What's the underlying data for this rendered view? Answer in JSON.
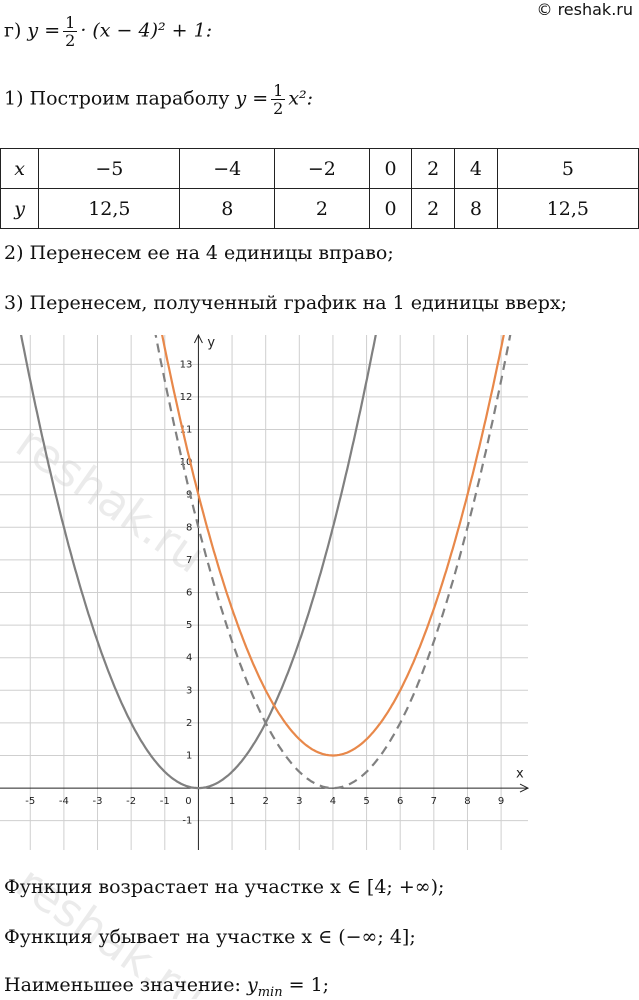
{
  "header": {
    "label": "г)",
    "lhs": "y =",
    "num": "1",
    "den": "2",
    "rest": "· (x − 4)² + 1:",
    "copyright": "© reshak.ru"
  },
  "step1": {
    "text": "1) Построим параболу",
    "lhs": "y =",
    "num": "1",
    "den": "2",
    "rest": "x²:"
  },
  "table": {
    "rows": [
      [
        "x",
        "−5",
        "−4",
        "−2",
        "0",
        "2",
        "4",
        "5"
      ],
      [
        "y",
        "12,5",
        "8",
        "2",
        "0",
        "2",
        "8",
        "12,5"
      ]
    ]
  },
  "step2": "2) Перенесем ее на 4 единицы вправо;",
  "step3": "3) Перенесем, полученный график на 1 единицы вверх;",
  "graph": {
    "x_label": "x",
    "y_label": "y",
    "xlim": [
      -5.9,
      9.8
    ],
    "ylim": [
      -1.9,
      13.9
    ],
    "xticks": [
      -5,
      -4,
      -3,
      -2,
      -1,
      0,
      1,
      2,
      3,
      4,
      5,
      6,
      7,
      8,
      9
    ],
    "yticks": [
      -1,
      1,
      2,
      3,
      4,
      5,
      6,
      7,
      8,
      9,
      10,
      11,
      12,
      13
    ],
    "grid": true,
    "curves": [
      {
        "a": 0.5,
        "h": 0,
        "k": 0,
        "color": "#808080",
        "dashed": false
      },
      {
        "a": 0.5,
        "h": 4,
        "k": 0,
        "color": "#808080",
        "dashed": true
      },
      {
        "a": 0.5,
        "h": 4,
        "k": 1,
        "color": "#e8884a",
        "dashed": false
      }
    ]
  },
  "watermark": "reshak.ru",
  "conclusions": {
    "increase": "Функция возрастает на участке x ∈ [4; +∞);",
    "decrease": "Функция убывает на участке x ∈ (−∞; 4];",
    "min_text": "Наименьшее значение:",
    "min_y": "y",
    "min_sub": "min",
    "min_rest": "= 1;"
  }
}
